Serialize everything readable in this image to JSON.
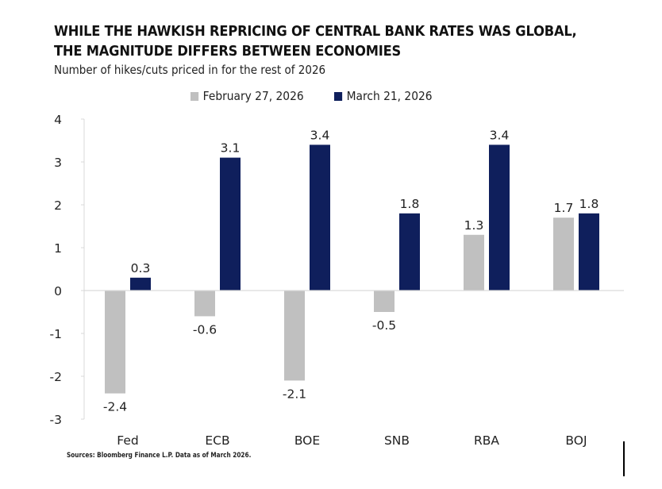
{
  "header": {
    "title_line1": "WHILE THE HAWKISH REPRICING OF CENTRAL BANK RATES WAS GLOBAL,",
    "title_line2": "THE MAGNITUDE DIFFERS BETWEEN ECONOMIES",
    "subtitle": "Number of hikes/cuts priced in for the rest of 2026"
  },
  "footer": {
    "source": "Sources: Bloomberg Finance L.P. Data as of March 2026."
  },
  "chart_data": {
    "type": "bar",
    "title": "WHILE THE HAWKISH REPRICING OF CENTRAL BANK RATES WAS GLOBAL, THE MAGNITUDE DIFFERS BETWEEN ECONOMIES",
    "subtitle": "Number of hikes/cuts priced in for the rest of 2026",
    "xlabel": "",
    "ylabel": "",
    "categories": [
      "Fed",
      "ECB",
      "BOE",
      "SNB",
      "RBA",
      "BOJ"
    ],
    "series": [
      {
        "name": "February 27, 2026",
        "color": "#c0c0c0",
        "values": [
          -2.4,
          -0.6,
          -2.1,
          -0.5,
          1.3,
          1.7
        ],
        "labels": [
          "-2.4",
          "-0.6",
          "-2.1",
          "-0.5",
          "1.3",
          "1.7"
        ]
      },
      {
        "name": "March 21, 2026",
        "color": "#0f1f5c",
        "values": [
          0.3,
          3.1,
          3.4,
          1.8,
          3.4,
          1.8
        ],
        "labels": [
          "0.3",
          "3.1",
          "3.4",
          "1.8",
          "3.4",
          "1.8"
        ]
      }
    ],
    "ylim": [
      -3,
      4
    ],
    "yticks": [
      4,
      3,
      2,
      1,
      0,
      -1,
      -2,
      -3
    ],
    "ytick_labels": [
      "4",
      "3",
      "2",
      "1",
      "0",
      "-1",
      "-2",
      "-3"
    ],
    "legend_position": "top-center",
    "grid": false,
    "data_labels": true
  }
}
